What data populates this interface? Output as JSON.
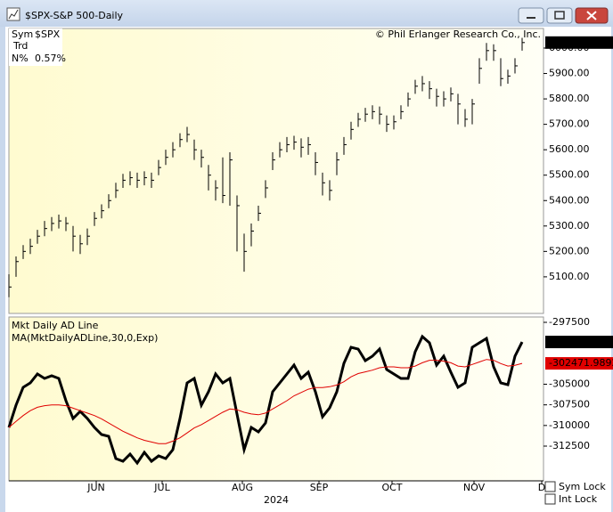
{
  "window_title": "$SPX-S&P 500-Daily",
  "info": {
    "sym_label": "Sym",
    "sym": "$SPX",
    "trd_label": "Trd",
    "n_label": "N%",
    "n_value": "0.57%"
  },
  "copyright": "© Phil Erlanger Research Co., Inc.",
  "checkboxes": [
    "Sym Lock",
    "Int Lock"
  ],
  "chart_data": [
    {
      "type": "ohlc",
      "color": "#000000",
      "x": [
        0,
        2,
        4,
        6,
        8,
        10,
        12,
        14,
        16,
        18,
        20,
        22,
        24,
        26,
        28,
        30,
        32,
        34,
        36,
        38,
        40,
        42,
        44,
        46,
        48,
        50,
        52,
        54,
        56,
        58,
        60,
        62,
        64,
        66,
        68,
        70,
        72,
        74,
        76,
        78,
        80,
        82,
        84,
        86,
        88,
        90,
        92,
        94,
        96,
        98,
        100,
        102,
        104,
        106,
        108,
        110,
        112,
        114,
        116,
        118,
        120,
        122,
        124,
        126,
        128,
        130,
        132,
        134,
        136,
        138,
        140,
        142,
        144
      ],
      "high": [
        5110,
        5180,
        5225,
        5250,
        5285,
        5320,
        5335,
        5345,
        5335,
        5300,
        5265,
        5290,
        5355,
        5385,
        5425,
        5470,
        5505,
        5515,
        5510,
        5515,
        5510,
        5560,
        5600,
        5630,
        5665,
        5690,
        5640,
        5600,
        5540,
        5480,
        5570,
        5590,
        5420,
        5270,
        5310,
        5380,
        5480,
        5590,
        5630,
        5650,
        5655,
        5645,
        5650,
        5590,
        5510,
        5480,
        5590,
        5650,
        5710,
        5745,
        5765,
        5775,
        5770,
        5735,
        5735,
        5775,
        5825,
        5875,
        5890,
        5870,
        5840,
        5830,
        5845,
        5820,
        5760,
        5800,
        5960,
        6020,
        6015,
        5960,
        5915,
        5960,
        6040
      ],
      "low": [
        5020,
        5100,
        5170,
        5190,
        5230,
        5260,
        5280,
        5290,
        5280,
        5200,
        5190,
        5225,
        5300,
        5330,
        5370,
        5410,
        5450,
        5460,
        5450,
        5460,
        5450,
        5500,
        5540,
        5570,
        5610,
        5630,
        5560,
        5530,
        5440,
        5400,
        5390,
        5380,
        5200,
        5120,
        5220,
        5320,
        5410,
        5520,
        5570,
        5590,
        5600,
        5570,
        5580,
        5500,
        5420,
        5400,
        5500,
        5580,
        5640,
        5690,
        5710,
        5720,
        5700,
        5670,
        5680,
        5720,
        5770,
        5820,
        5830,
        5800,
        5770,
        5770,
        5790,
        5700,
        5690,
        5700,
        5860,
        5950,
        5950,
        5850,
        5860,
        5900,
        5990
      ],
      "close": [
        5060,
        5160,
        5200,
        5220,
        5260,
        5290,
        5310,
        5320,
        5310,
        5260,
        5230,
        5260,
        5330,
        5360,
        5400,
        5440,
        5480,
        5490,
        5480,
        5490,
        5480,
        5530,
        5570,
        5600,
        5640,
        5660,
        5600,
        5570,
        5500,
        5450,
        5420,
        5560,
        5380,
        5200,
        5280,
        5350,
        5450,
        5560,
        5600,
        5620,
        5630,
        5610,
        5620,
        5550,
        5470,
        5440,
        5560,
        5620,
        5680,
        5720,
        5740,
        5750,
        5740,
        5700,
        5710,
        5750,
        5800,
        5850,
        5860,
        5840,
        5810,
        5800,
        5820,
        5780,
        5720,
        5780,
        5920,
        5990,
        5990,
        5880,
        5890,
        5930,
        6021.63
      ],
      "xlim": [
        0,
        150
      ],
      "ylim": [
        4956,
        6077
      ],
      "yticks": [
        {
          "value": 5100,
          "label": "5100.00"
        },
        {
          "value": 5200,
          "label": "5200.00"
        },
        {
          "value": 5300,
          "label": "5300.00"
        },
        {
          "value": 5400,
          "label": "5400.00"
        },
        {
          "value": 5500,
          "label": "5500.00"
        },
        {
          "value": 5600,
          "label": "5600.00"
        },
        {
          "value": 5700,
          "label": "5700.00"
        },
        {
          "value": 5800,
          "label": "5800.00"
        },
        {
          "value": 5900,
          "label": "5900.00"
        },
        {
          "value": 6000,
          "label": "6000.00"
        }
      ]
    },
    {
      "type": "line",
      "x": [
        0,
        2,
        4,
        6,
        8,
        10,
        12,
        14,
        16,
        18,
        20,
        22,
        24,
        26,
        28,
        30,
        32,
        34,
        36,
        38,
        40,
        42,
        44,
        46,
        48,
        50,
        52,
        54,
        56,
        58,
        60,
        62,
        64,
        66,
        68,
        70,
        72,
        74,
        76,
        78,
        80,
        82,
        84,
        86,
        88,
        90,
        92,
        94,
        96,
        98,
        100,
        102,
        104,
        106,
        108,
        110,
        112,
        114,
        116,
        118,
        120,
        122,
        124,
        126,
        128,
        130,
        132,
        134,
        136,
        138,
        140,
        142,
        144
      ],
      "series": [
        {
          "name": "Mkt Daily AD Line",
          "color": "#000000",
          "values": [
            -310230,
            -307540,
            -305380,
            -304840,
            -303760,
            -304300,
            -303970,
            -304300,
            -307000,
            -309150,
            -308290,
            -309150,
            -310230,
            -311100,
            -311310,
            -314010,
            -314330,
            -313470,
            -314550,
            -313250,
            -314330,
            -313690,
            -314010,
            -312930,
            -309150,
            -304840,
            -304300,
            -307540,
            -305920,
            -303760,
            -304840,
            -304300,
            -308610,
            -312930,
            -310230,
            -310770,
            -309690,
            -305920,
            -304840,
            -303760,
            -302680,
            -304300,
            -303540,
            -305920,
            -308940,
            -307860,
            -305920,
            -302460,
            -300520,
            -300740,
            -302140,
            -301600,
            -300740,
            -303220,
            -303760,
            -304300,
            -304300,
            -301060,
            -299230,
            -299980,
            -302680,
            -301600,
            -303540,
            -305380,
            -304840,
            -300520,
            -299980,
            -299450,
            -302890,
            -304840,
            -305060,
            -301600,
            -299880
          ]
        },
        {
          "name": "MA(MktDailyADLine,30,0,Exp)",
          "color": "#e00000",
          "values": [
            -310230,
            -309500,
            -308800,
            -308200,
            -307800,
            -307600,
            -307500,
            -307500,
            -307600,
            -307900,
            -308200,
            -308500,
            -308800,
            -309200,
            -309700,
            -310200,
            -310700,
            -311100,
            -311500,
            -311800,
            -312000,
            -312200,
            -312200,
            -311900,
            -311500,
            -310900,
            -310300,
            -309900,
            -309400,
            -308900,
            -308400,
            -308000,
            -308100,
            -308400,
            -308600,
            -308700,
            -308500,
            -308000,
            -307500,
            -307000,
            -306400,
            -306000,
            -305600,
            -305400,
            -305400,
            -305300,
            -305100,
            -304700,
            -304100,
            -303700,
            -303500,
            -303300,
            -303000,
            -302900,
            -302900,
            -303000,
            -303000,
            -302800,
            -302400,
            -302100,
            -302100,
            -302200,
            -302400,
            -302800,
            -302900,
            -302600,
            -302300,
            -302000,
            -302100,
            -302500,
            -302800,
            -302700,
            -302471.9892
          ]
        }
      ],
      "xlim": [
        0,
        150
      ],
      "xticks": [
        {
          "value": 24.5,
          "label": "JUN"
        },
        {
          "value": 43,
          "label": "JUL"
        },
        {
          "value": 65.5,
          "label": "AUG"
        },
        {
          "value": 87,
          "label": "SEP"
        },
        {
          "value": 107.5,
          "label": "OCT"
        },
        {
          "value": 130.5,
          "label": "NOV"
        },
        {
          "value": 149.5,
          "label": "D"
        }
      ],
      "xlabel": "2024",
      "ylim": [
        -316708,
        -296853
      ],
      "yticks": [
        -297500,
        -305000,
        -307500,
        -310000,
        -312500
      ]
    }
  ]
}
